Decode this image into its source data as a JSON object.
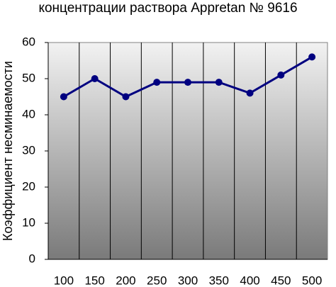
{
  "chart_data": {
    "type": "line",
    "title": "концентрации раствора Appretan № 9616",
    "y_label": "Коэффициент несминаемости",
    "categories": [
      "100",
      "150",
      "200",
      "250",
      "300",
      "350",
      "400",
      "450",
      "500"
    ],
    "series": [
      {
        "color": "#000080",
        "values": [
          45,
          50,
          45,
          49,
          49,
          49,
          46,
          51,
          56
        ]
      }
    ],
    "ylim": [
      0,
      60
    ],
    "yticks": [
      0,
      10,
      20,
      30,
      40,
      50,
      60
    ],
    "grid": true
  }
}
